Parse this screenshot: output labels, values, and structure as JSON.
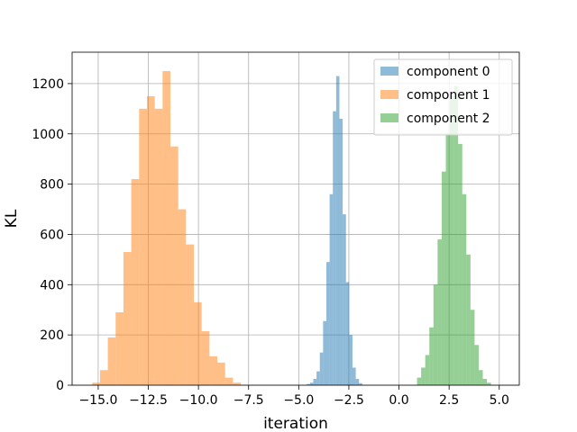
{
  "chart_data": {
    "type": "histogram",
    "title": "",
    "xlabel": "iteration",
    "ylabel": "KL",
    "xlim": [
      -16.3,
      6.0
    ],
    "ylim": [
      0,
      1325
    ],
    "xticks": [
      -15.0,
      -12.5,
      -10.0,
      -7.5,
      -5.0,
      -2.5,
      0.0,
      2.5,
      5.0
    ],
    "xtick_labels": [
      "−15.0",
      "−12.5",
      "−10.0",
      "−7.5",
      "−5.0",
      "−2.5",
      "0.0",
      "2.5",
      "5.0"
    ],
    "yticks": [
      0,
      200,
      400,
      600,
      800,
      1000,
      1200
    ],
    "ytick_labels": [
      "0",
      "200",
      "400",
      "600",
      "800",
      "1000",
      "1200"
    ],
    "grid": true,
    "legend_position": "top-right",
    "series": [
      {
        "name": "component 0",
        "color": "#1f77b4",
        "alpha": 0.5,
        "x_start": -4.6,
        "bin_width": 0.163,
        "counts": [
          5,
          10,
          25,
          55,
          130,
          255,
          490,
          760,
          1090,
          1230,
          1060,
          680,
          410,
          200,
          70,
          25,
          8
        ]
      },
      {
        "name": "component 1",
        "color": "#ff7f0e",
        "alpha": 0.5,
        "x_start": -15.3,
        "bin_width": 0.39,
        "counts": [
          10,
          60,
          190,
          290,
          530,
          820,
          1100,
          1150,
          1100,
          1250,
          950,
          700,
          560,
          330,
          215,
          115,
          90,
          30,
          10
        ]
      },
      {
        "name": "component 2",
        "color": "#2ca02c",
        "alpha": 0.5,
        "x_start": 0.9,
        "bin_width": 0.205,
        "counts": [
          30,
          70,
          120,
          230,
          400,
          580,
          850,
          1000,
          1150,
          1190,
          960,
          760,
          520,
          300,
          160,
          60,
          25,
          10
        ]
      }
    ]
  }
}
